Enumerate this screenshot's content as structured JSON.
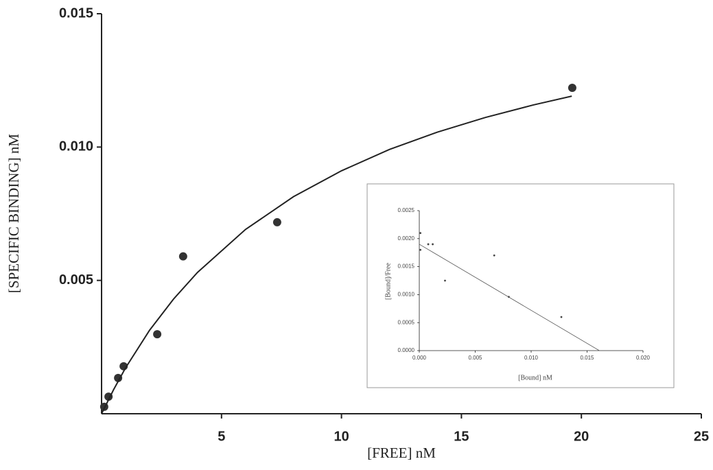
{
  "chart_data": [
    {
      "type": "scatter",
      "x_label": "[FREE] nM",
      "y_label": "[SPECIFIC BINDING] nM",
      "xlim": [
        0,
        25
      ],
      "xticks": [
        5,
        10,
        15,
        20,
        25
      ],
      "ylim": [
        0,
        0.015
      ],
      "yticks": [
        0.005,
        {
          "value": 0.01,
          "label": "0.010"
        },
        0.015
      ],
      "series": [
        {
          "type": "scatter",
          "color": "#333333",
          "x": [
            0.11,
            0.29,
            0.69,
            0.92,
            2.32,
            3.4,
            7.32,
            19.62
          ],
          "values": [
            0.00026,
            0.00064,
            0.00134,
            0.00178,
            0.00298,
            0.0059,
            0.00718,
            0.01222
          ]
        },
        {
          "type": "line",
          "color": "#222222",
          "x": [
            0,
            0.5,
            1,
            2,
            3,
            4,
            6,
            8,
            10,
            12,
            14,
            16,
            18,
            19.6
          ],
          "values": [
            0,
            0.0009,
            0.00172,
            0.00313,
            0.0043,
            0.0053,
            0.00691,
            0.00814,
            0.00911,
            0.00991,
            0.01056,
            0.01111,
            0.01158,
            0.01191
          ]
        }
      ]
    },
    {
      "type": "scatter",
      "x_label": "[Bound] nM",
      "y_label": "[Bound]/Free",
      "xlim": [
        0,
        0.02
      ],
      "xticks": [
        {
          "value": 0,
          "label": "0.000"
        },
        0.005,
        {
          "value": 0.01,
          "label": "0.010"
        },
        0.015,
        {
          "value": 0.02,
          "label": "0.020"
        }
      ],
      "ylim": [
        0,
        0.0025
      ],
      "yticks": [
        {
          "value": 0,
          "label": "0.0000"
        },
        0.0005,
        {
          "value": 0.001,
          "label": "0.0010"
        },
        0.0015,
        {
          "value": 0.002,
          "label": "0.0020"
        },
        0.0025
      ],
      "series": [
        {
          "type": "scatter",
          "color": "#444444",
          "x": [
            0.0001,
            0.0001,
            0.0008,
            0.0012,
            0.0023,
            0.0067,
            0.008,
            0.0127
          ],
          "values": [
            0.0018,
            0.0021,
            0.0019,
            0.0019,
            0.00125,
            0.0017,
            0.00096,
            0.0006
          ]
        },
        {
          "type": "line",
          "color": "#555555",
          "x": [
            0,
            0.0161
          ],
          "values": [
            0.0019,
            0
          ]
        }
      ]
    }
  ]
}
